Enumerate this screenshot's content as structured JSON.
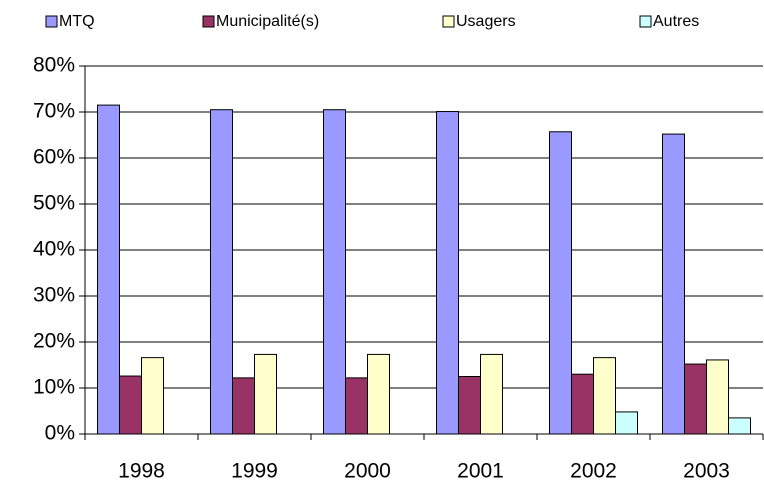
{
  "chart_data": {
    "type": "bar",
    "categories": [
      "1998",
      "1999",
      "2000",
      "2001",
      "2002",
      "2003"
    ],
    "series": [
      {
        "name": "MTQ",
        "color": "#9999ff",
        "values": [
          71.5,
          70.5,
          70.5,
          70.1,
          65.7,
          65.2
        ]
      },
      {
        "name": "Municipalité(s)",
        "color": "#993366",
        "values": [
          12.6,
          12.2,
          12.2,
          12.5,
          13,
          15.2
        ]
      },
      {
        "name": "Usagers",
        "color": "#ffffcc",
        "values": [
          16.6,
          17.3,
          17.3,
          17.3,
          16.6,
          16.1
        ]
      },
      {
        "name": "Autres",
        "color": "#ccffff",
        "values": [
          0,
          0,
          0,
          0,
          4.8,
          3.5
        ]
      }
    ],
    "ylim": [
      0,
      80
    ],
    "yticks": [
      {
        "value": 0,
        "label": "0%"
      },
      {
        "value": 10,
        "label": "10%"
      },
      {
        "value": 20,
        "label": "20%"
      },
      {
        "value": 30,
        "label": "30%"
      },
      {
        "value": 40,
        "label": "40%"
      },
      {
        "value": 50,
        "label": "50%"
      },
      {
        "value": 60,
        "label": "60%"
      },
      {
        "value": 70,
        "label": "70%"
      },
      {
        "value": 80,
        "label": "80%"
      }
    ],
    "grid": true,
    "legend": "top"
  }
}
